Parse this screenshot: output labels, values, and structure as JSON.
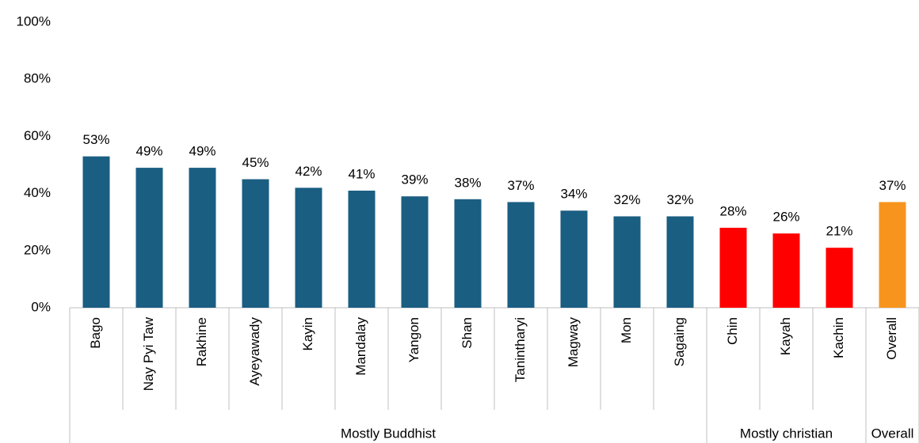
{
  "chart_data": {
    "type": "bar",
    "categories": [
      "Bago",
      "Nay Pyi Taw",
      "Rakhine",
      "Ayeyawady",
      "Kayin",
      "Mandalay",
      "Yangon",
      "Shan",
      "Tanintharyi",
      "Magway",
      "Mon",
      "Sagaing",
      "Chin",
      "Kayah",
      "Kachin",
      "Overall"
    ],
    "series": [
      {
        "name": "Mostly Buddhist",
        "color": "#1a5e82",
        "values": [
          53,
          49,
          49,
          45,
          42,
          41,
          39,
          38,
          37,
          34,
          32,
          32,
          null,
          null,
          null,
          null
        ],
        "value_labels": [
          "53%",
          "49%",
          "49%",
          "45%",
          "42%",
          "41%",
          "39%",
          "38%",
          "37%",
          "34%",
          "32%",
          "32%",
          null,
          null,
          null,
          null
        ]
      },
      {
        "name": "Mostly christian",
        "color": "#ff0000",
        "values": [
          null,
          null,
          null,
          null,
          null,
          null,
          null,
          null,
          null,
          null,
          null,
          null,
          28,
          26,
          21,
          null
        ],
        "value_labels": [
          null,
          null,
          null,
          null,
          null,
          null,
          null,
          null,
          null,
          null,
          null,
          null,
          "28%",
          "26%",
          "21%",
          null
        ]
      },
      {
        "name": "Overall",
        "color": "#f7941d",
        "values": [
          null,
          null,
          null,
          null,
          null,
          null,
          null,
          null,
          null,
          null,
          null,
          null,
          null,
          null,
          null,
          37
        ],
        "value_labels": [
          null,
          null,
          null,
          null,
          null,
          null,
          null,
          null,
          null,
          null,
          null,
          null,
          null,
          null,
          null,
          "37%"
        ]
      }
    ],
    "ylim": [
      0,
      100
    ],
    "yticks": [
      {
        "value": 0,
        "label": "0%"
      },
      {
        "value": 20,
        "label": "20%"
      },
      {
        "value": 40,
        "label": "40%"
      },
      {
        "value": 60,
        "label": "60%"
      },
      {
        "value": 80,
        "label": "80%"
      },
      {
        "value": 100,
        "label": "100%"
      }
    ],
    "grid": false
  }
}
